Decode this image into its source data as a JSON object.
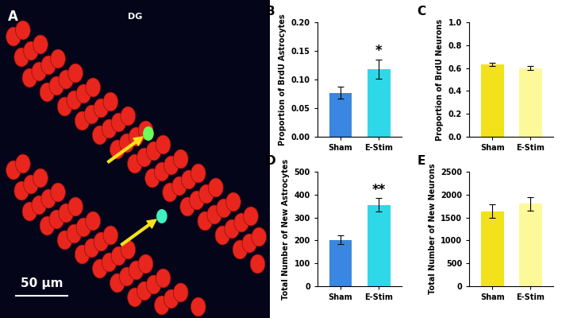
{
  "image_panel": {
    "label": "A",
    "region": "DG",
    "scale_bar": "50 μm"
  },
  "chart_data": [
    {
      "type": "bar",
      "title": "B",
      "ylabel": "Proportion of BrdU Astrocytes",
      "categories": [
        "Sham",
        "E-Stim"
      ],
      "values": [
        0.077,
        0.118
      ],
      "errors": [
        0.011,
        0.017
      ],
      "colors": [
        "#3a86e0",
        "#2fd8e8"
      ],
      "annotations": [
        null,
        "*"
      ],
      "ylim": [
        0,
        0.2
      ],
      "yticks": [
        {
          "value": 0,
          "label": "0.00"
        },
        {
          "value": 0.05,
          "label": "0.05"
        },
        {
          "value": 0.1,
          "label": "0.10"
        },
        {
          "value": 0.15,
          "label": "0.15"
        },
        {
          "value": 0.2,
          "label": "0.20"
        }
      ],
      "grid": false
    },
    {
      "type": "bar",
      "title": "C",
      "ylabel": "Proportion of BrdU Neurons",
      "categories": [
        "Sham",
        "E-Stim"
      ],
      "values": [
        0.63,
        0.6
      ],
      "errors": [
        0.015,
        0.015
      ],
      "colors": [
        "#f2e21c",
        "#fdf89a"
      ],
      "annotations": [
        null,
        null
      ],
      "ylim": [
        0,
        1
      ],
      "yticks": [
        {
          "value": 0,
          "label": "0.0"
        },
        {
          "value": 0.2,
          "label": "0.2"
        },
        {
          "value": 0.4,
          "label": "0.4"
        },
        {
          "value": 0.6,
          "label": "0.6"
        },
        {
          "value": 0.8,
          "label": "0.8"
        },
        {
          "value": 1,
          "label": "1.0"
        }
      ],
      "grid": false
    },
    {
      "type": "bar",
      "title": "D",
      "ylabel": "Total Number of New Astrocytes",
      "categories": [
        "Sham",
        "E-Stim"
      ],
      "values": [
        203,
        355
      ],
      "errors": [
        18,
        30
      ],
      "colors": [
        "#3a86e0",
        "#2fd8e8"
      ],
      "annotations": [
        null,
        "**"
      ],
      "ylim": [
        0,
        500
      ],
      "yticks": [
        0,
        100,
        200,
        300,
        400,
        500
      ],
      "grid": false
    },
    {
      "type": "bar",
      "title": "E",
      "ylabel": "Total Number of New Neurons",
      "categories": [
        "Sham",
        "E-Stim"
      ],
      "values": [
        1640,
        1800
      ],
      "errors": [
        150,
        150
      ],
      "colors": [
        "#f2e21c",
        "#fdf89a"
      ],
      "annotations": [
        null,
        null
      ],
      "ylim": [
        0,
        2500
      ],
      "yticks": [
        0,
        500,
        1000,
        1500,
        2000,
        2500
      ],
      "grid": false
    }
  ]
}
